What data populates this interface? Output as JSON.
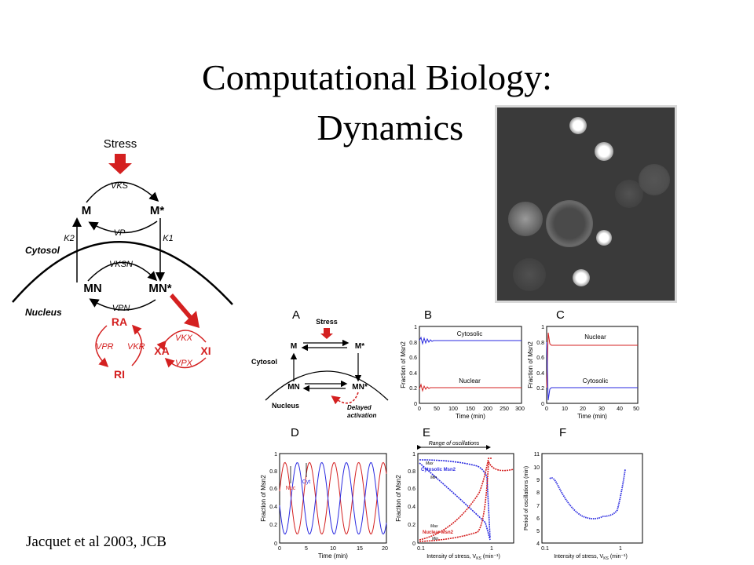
{
  "slide": {
    "title_line1": "Computational Biology:",
    "title_line2": "Dynamics",
    "citation": "Jacquet et al 2003, JCB"
  },
  "model_diagram": {
    "stress": "Stress",
    "M": "M",
    "M_star": "M*",
    "VKS": "VKS",
    "VP": "VP",
    "K2": "K2",
    "K1": "K1",
    "cytosol": "Cytosol",
    "VKSN": "VKSN",
    "MN": "MN",
    "MN_star": "MN*",
    "VPN": "VPN",
    "nucleus": "Nucleus",
    "RA": "RA",
    "RI": "RI",
    "VPR": "VPR",
    "VKR": "VKR",
    "XA": "XA",
    "XI": "XI",
    "VKX": "VKX",
    "VPX": "VPX",
    "colors": {
      "red": "#d42020",
      "black": "#000000"
    }
  },
  "panel_A": {
    "letter": "A",
    "stress": "Stress",
    "M": "M",
    "M_star": "M*",
    "cytosol": "Cytosol",
    "MN": "MN",
    "MN_star": "MN*",
    "nucleus": "Nucleus",
    "delayed_line1": "Delayed",
    "delayed_line2": "activation"
  },
  "panel_B": {
    "letter": "B",
    "ylabel": "Fraction of Msn2",
    "xlabel": "Time (min)",
    "series_top": "Cytosolic",
    "series_bottom": "Nuclear",
    "xticks": [
      "0",
      "50",
      "100",
      "150",
      "200",
      "250",
      "300"
    ],
    "yticks": [
      "0",
      "0.2",
      "0.4",
      "0.6",
      "0.8",
      "1"
    ]
  },
  "panel_C": {
    "letter": "C",
    "ylabel": "Fraction of Msn2",
    "xlabel": "Time (min)",
    "series_top": "Nuclear",
    "series_bottom": "Cytosolic",
    "xticks": [
      "0",
      "10",
      "20",
      "30",
      "40",
      "50"
    ],
    "yticks": [
      "0",
      "0.2",
      "0.4",
      "0.6",
      "0.8",
      "1"
    ]
  },
  "panel_D": {
    "letter": "D",
    "ylabel": "Fraction of Msn2",
    "xlabel": "Time (min)",
    "label_nuc": "Nuc",
    "label_cyt": "Cyt",
    "xticks": [
      "0",
      "5",
      "10",
      "15",
      "20"
    ],
    "yticks": [
      "0",
      "0.2",
      "0.4",
      "0.6",
      "0.8",
      "1"
    ]
  },
  "panel_E": {
    "letter": "E",
    "range_label": "Range of oscillations",
    "ylabel": "Fraction of Msn2",
    "xlabel": "Intensity of stress, V",
    "xlabel_sub": "KS",
    "xlabel_unit": " (min⁻¹)",
    "max": "Max",
    "min": "Min",
    "cytosolic": "Cytosolic Msn2",
    "nuclear": "Nuclear Msn2",
    "xticks": [
      "0.1",
      "1"
    ],
    "yticks": [
      "0",
      "0.2",
      "0.4",
      "0.6",
      "0.8",
      "1"
    ]
  },
  "panel_F": {
    "letter": "F",
    "ylabel": "Period of oscillations (min)",
    "xlabel": "Intensity of stress, V",
    "xlabel_sub": "KS",
    "xlabel_unit": " (min⁻¹)",
    "xticks": [
      "0.1",
      "1"
    ],
    "yticks": [
      "4",
      "5",
      "6",
      "7",
      "8",
      "9",
      "10",
      "11"
    ]
  }
}
